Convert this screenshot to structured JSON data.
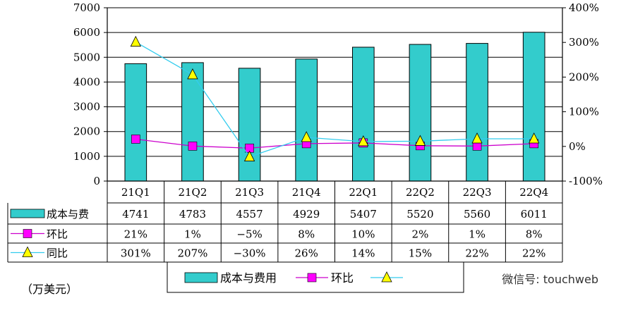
{
  "chart_data": {
    "type": "bar",
    "categories": [
      "21Q1",
      "21Q2",
      "21Q3",
      "21Q4",
      "22Q1",
      "22Q2",
      "22Q3",
      "22Q4"
    ],
    "unit_label": "（万美元）",
    "y_left": {
      "min": 0,
      "max": 7000,
      "ticks": [
        0,
        1000,
        2000,
        3000,
        4000,
        5000,
        6000,
        7000
      ]
    },
    "y_right": {
      "min": -100,
      "max": 400,
      "ticks": [
        -100,
        0,
        100,
        200,
        300,
        400
      ],
      "tick_labels": [
        "-100%",
        "0%",
        "100%",
        "200%",
        "300%",
        "400%"
      ]
    },
    "grid": true,
    "series": [
      {
        "name": "成本与费",
        "legend_name": "成本与费用",
        "kind": "bar",
        "axis": "left",
        "color": "#33CCCC",
        "values": [
          4741,
          4783,
          4557,
          4929,
          5407,
          5520,
          5560,
          6011
        ],
        "labels": [
          "4741",
          "4783",
          "4557",
          "4929",
          "5407",
          "5520",
          "5560",
          "6011"
        ]
      },
      {
        "name": "环比",
        "legend_name": "环比",
        "kind": "line",
        "axis": "right",
        "color": "#CC00CC",
        "marker": "square",
        "marker_color": "#FF00FF",
        "values": [
          21,
          1,
          -5,
          8,
          10,
          2,
          1,
          8
        ],
        "labels": [
          "21%",
          "1%",
          "−5%",
          "8%",
          "10%",
          "2%",
          "1%",
          "8%"
        ]
      },
      {
        "name": "同比",
        "kind": "line",
        "axis": "right",
        "color": "#33CCEE",
        "marker": "triangle",
        "marker_color": "#FFFF00",
        "values": [
          301,
          207,
          -30,
          26,
          14,
          15,
          22,
          22
        ],
        "labels": [
          "301%",
          "207%",
          "−30%",
          "26%",
          "14%",
          "15%",
          "22%",
          "22%"
        ]
      }
    ],
    "watermark": "微信号: touchweb"
  }
}
